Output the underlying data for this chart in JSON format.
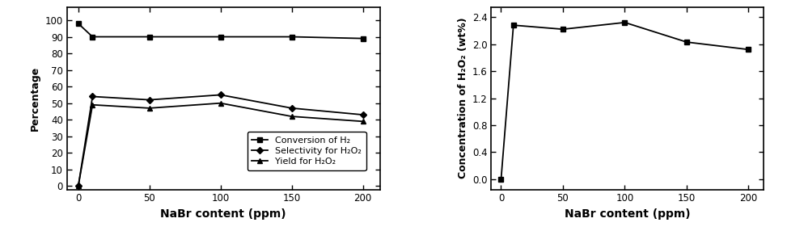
{
  "x": [
    0,
    10,
    50,
    100,
    150,
    200
  ],
  "conversion_h2": [
    98,
    90,
    90,
    90,
    90,
    89
  ],
  "selectivity_h2o2": [
    0,
    54,
    52,
    55,
    47,
    43
  ],
  "yield_h2o2": [
    0,
    49,
    47,
    50,
    42,
    39
  ],
  "concentration_h2o2": [
    0,
    2.28,
    2.22,
    2.32,
    2.03,
    1.92
  ],
  "x_ticks": [
    0,
    50,
    100,
    150,
    200
  ],
  "left_ylim": [
    -2,
    108
  ],
  "left_yticks": [
    0,
    10,
    20,
    30,
    40,
    50,
    60,
    70,
    80,
    90,
    100
  ],
  "right_ylim": [
    -0.15,
    2.55
  ],
  "right_yticks": [
    0.0,
    0.4,
    0.8,
    1.2,
    1.6,
    2.0,
    2.4
  ],
  "xlabel": "NaBr content (ppm)",
  "left_ylabel": "Percentage",
  "right_ylabel": "Concentration of H₂O₂ (wt%)",
  "legend_labels": [
    "Conversion of H₂",
    "Selectivity for H₂O₂",
    "Yield for H₂O₂"
  ],
  "line_color": "black",
  "marker_square": "s",
  "marker_diamond": "D",
  "marker_triangle": "^",
  "markersize": 5,
  "linewidth": 1.3,
  "xlabel_fontsize": 10,
  "ylabel_fontsize": 9,
  "tick_fontsize": 8.5,
  "legend_fontsize": 8
}
